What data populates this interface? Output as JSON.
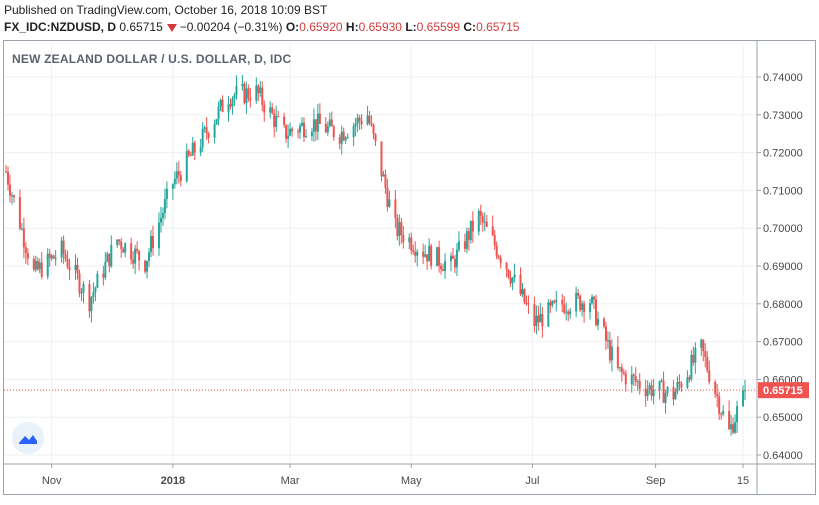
{
  "header": {
    "published": "Published on TradingView.com, October 16, 2018 10:09 BST",
    "symbol": "FX_IDC:NZDUSD, D",
    "last": "0.65715",
    "change": "−0.00204 (−0.31%)",
    "o_label": "O:",
    "o_value": "0.65920",
    "h_label": "H:",
    "h_value": "0.65930",
    "l_label": "L:",
    "l_value": "0.65599",
    "c_label": "C:",
    "c_value": "0.65715"
  },
  "colors": {
    "up": "#26a69a",
    "down": "#ef5350",
    "price_tag": "#ef5350",
    "grid": "#eef1f4",
    "axis_text": "#4a4a4a"
  },
  "chart_data": {
    "type": "candlestick",
    "title": "NEW ZEALAND DOLLAR / U.S. DOLLAR, D, IDC",
    "ylim": [
      0.6365,
      0.7465
    ],
    "y_ticks": [
      "0.74000",
      "0.73000",
      "0.72000",
      "0.71000",
      "0.70000",
      "0.69000",
      "0.68000",
      "0.67000",
      "0.66000",
      "0.65000",
      "0.64000"
    ],
    "y_tick_values": [
      0.74,
      0.73,
      0.72,
      0.71,
      0.7,
      0.69,
      0.68,
      0.67,
      0.66,
      0.65,
      0.64
    ],
    "x_ticks": [
      "Nov",
      "2018",
      "Mar",
      "May",
      "Jul",
      "Sep",
      "15"
    ],
    "x_tick_dates": [
      "2017-11-01",
      "2018-01-01",
      "2018-03-01",
      "2018-05-01",
      "2018-07-01",
      "2018-09-01",
      "2018-10-15"
    ],
    "date_range": [
      "2017-10-09",
      "2018-10-16"
    ],
    "last_price": 0.65715,
    "last_price_label": "0.65715",
    "series": [
      {
        "dates": [
          "2017-10-09",
          "2017-10-23",
          "2017-11-06",
          "2017-11-20",
          "2017-12-04",
          "2017-12-18",
          "2018-01-01",
          "2018-01-15",
          "2018-01-29",
          "2018-02-12",
          "2018-02-26",
          "2018-03-12",
          "2018-03-26",
          "2018-04-09",
          "2018-04-23",
          "2018-05-07",
          "2018-05-21",
          "2018-06-04",
          "2018-06-18",
          "2018-07-02",
          "2018-07-16",
          "2018-07-30",
          "2018-08-13",
          "2018-08-27",
          "2018-09-10",
          "2018-09-24",
          "2018-10-08",
          "2018-10-16"
        ],
        "close": [
          0.715,
          0.688,
          0.694,
          0.681,
          0.697,
          0.691,
          0.712,
          0.723,
          0.735,
          0.736,
          0.725,
          0.728,
          0.725,
          0.73,
          0.7,
          0.694,
          0.69,
          0.703,
          0.69,
          0.675,
          0.68,
          0.681,
          0.662,
          0.658,
          0.656,
          0.668,
          0.646,
          0.657
        ]
      }
    ]
  }
}
